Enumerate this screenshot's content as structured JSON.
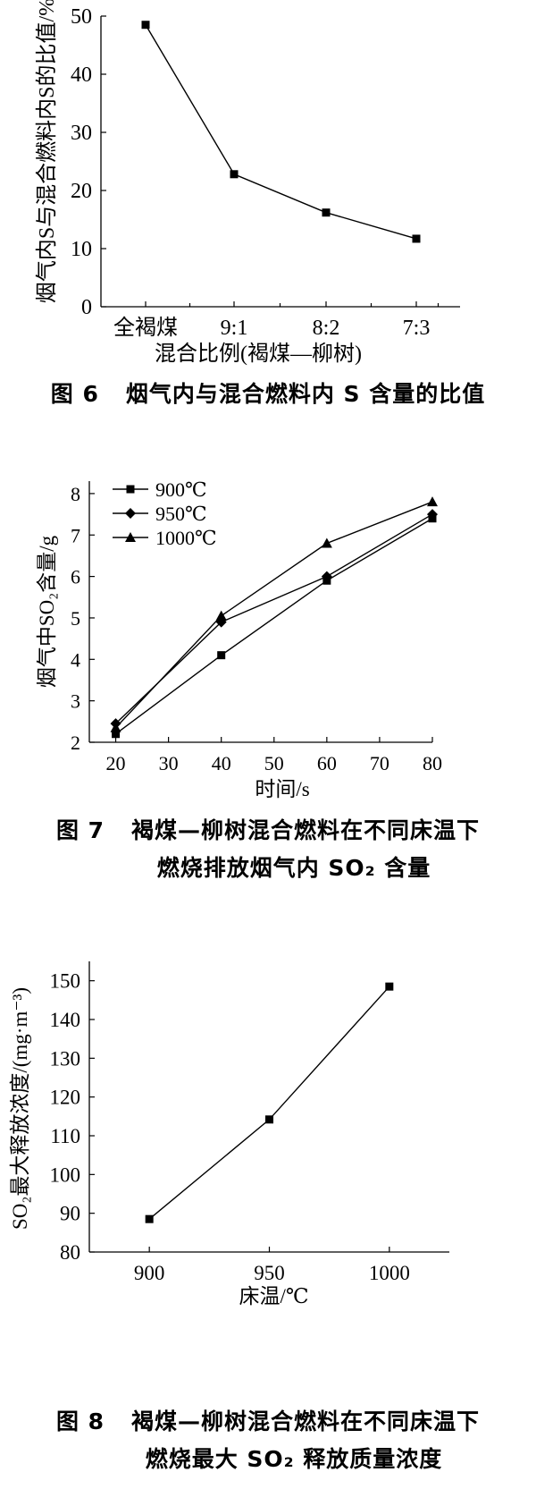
{
  "figures": [
    {
      "caption": {
        "number": "图 6",
        "text": "烟气内与混合燃料内 S 含量的比值"
      },
      "chart_data": {
        "type": "line",
        "title": "",
        "xlabel": "混合比例(褐煤—柳树)",
        "ylabel": "烟气内S与混合燃料内S的比值/%",
        "categories": [
          "全褐煤",
          "9:1",
          "8:2",
          "7:3"
        ],
        "yticks": [
          0,
          10,
          20,
          30,
          40,
          50
        ],
        "ylim": [
          0,
          50
        ],
        "grid": false,
        "series": [
          {
            "values": [
              48.5,
              22.8,
              16.2,
              11.7
            ],
            "marker": "square"
          }
        ]
      }
    },
    {
      "caption": {
        "number": "图 7",
        "text": "褐煤—柳树混合燃料在不同床温下",
        "line2": "燃烧排放烟气内 SO₂ 含量"
      },
      "chart_data": {
        "type": "line",
        "title": "",
        "xlabel": "时间/s",
        "ylabel": "烟气中SO₂含量/g",
        "x": [
          20,
          40,
          60,
          80
        ],
        "xticks": [
          20,
          30,
          40,
          50,
          60,
          70,
          80
        ],
        "yticks": [
          2,
          3,
          4,
          5,
          6,
          7,
          8
        ],
        "xlim": [
          15,
          80
        ],
        "ylim": [
          2,
          8.3
        ],
        "grid": false,
        "legend": "top-left",
        "series": [
          {
            "name": "900℃",
            "marker": "square",
            "values": [
              2.2,
              4.1,
              5.9,
              7.4
            ]
          },
          {
            "name": "950℃",
            "marker": "diamond",
            "values": [
              2.45,
              4.9,
              6.0,
              7.5
            ]
          },
          {
            "name": "1000℃",
            "marker": "triangle",
            "values": [
              2.35,
              5.05,
              6.8,
              7.8
            ]
          }
        ]
      }
    },
    {
      "caption": {
        "number": "图 8",
        "text": "褐煤—柳树混合燃料在不同床温下",
        "line2": "燃烧最大 SO₂ 释放质量浓度"
      },
      "chart_data": {
        "type": "line",
        "title": "",
        "xlabel": "床温/℃",
        "ylabel": "SO₂最大释放浓度/(mg·m⁻³)",
        "x": [
          900,
          950,
          1000
        ],
        "xticks": [
          900,
          950,
          1000
        ],
        "yticks": [
          80,
          90,
          100,
          110,
          120,
          130,
          140,
          150
        ],
        "xlim": [
          875,
          1025
        ],
        "ylim": [
          80,
          155
        ],
        "grid": false,
        "series": [
          {
            "values": [
              88.5,
              114.2,
              148.5
            ],
            "marker": "square"
          }
        ]
      }
    }
  ]
}
